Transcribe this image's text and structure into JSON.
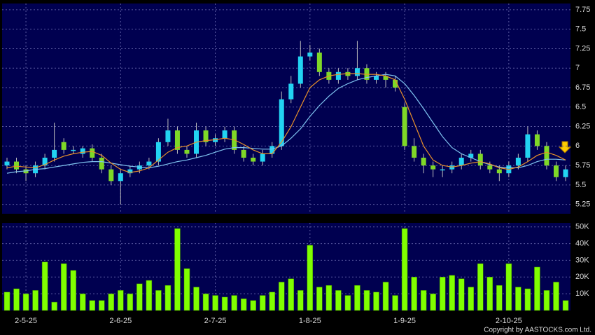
{
  "chart_data": {
    "type": "candlestick",
    "categories": [
      null,
      null,
      "2-5-25",
      null,
      null,
      null,
      null,
      null,
      null,
      null,
      null,
      null,
      "2-6-25",
      null,
      null,
      null,
      null,
      null,
      null,
      null,
      null,
      null,
      "2-7-25",
      null,
      null,
      null,
      null,
      null,
      null,
      null,
      null,
      null,
      "1-8-25",
      null,
      null,
      null,
      null,
      null,
      null,
      null,
      null,
      null,
      "1-9-25",
      null,
      null,
      null,
      null,
      null,
      null,
      null,
      null,
      null,
      null,
      "2-10-25",
      null,
      null,
      null,
      null,
      null,
      null
    ],
    "open": [
      5.75,
      5.8,
      5.7,
      5.65,
      5.75,
      5.85,
      6.05,
      5.95,
      5.9,
      5.97,
      5.85,
      5.7,
      5.55,
      5.65,
      5.7,
      5.75,
      5.8,
      6.05,
      6.2,
      5.95,
      5.9,
      6.2,
      6.05,
      6.1,
      6.2,
      5.95,
      5.85,
      5.8,
      5.9,
      6.0,
      6.6,
      6.8,
      7.15,
      7.2,
      6.95,
      6.85,
      6.95,
      6.9,
      7.0,
      6.85,
      6.9,
      6.85,
      6.5,
      6.0,
      5.85,
      5.75,
      5.7,
      5.7,
      5.75,
      5.85,
      5.9,
      5.75,
      5.7,
      5.65,
      5.75,
      5.85,
      6.15,
      6.0,
      5.75,
      5.6
    ],
    "high": [
      5.85,
      5.85,
      5.75,
      5.8,
      5.9,
      6.3,
      6.1,
      6.0,
      6.0,
      6.02,
      5.9,
      5.75,
      5.7,
      5.75,
      5.8,
      5.85,
      6.1,
      6.35,
      6.25,
      6.0,
      6.3,
      6.25,
      6.15,
      6.25,
      6.25,
      6.0,
      5.9,
      5.95,
      6.05,
      6.7,
      6.9,
      7.35,
      7.3,
      7.25,
      7.0,
      7.0,
      7.0,
      7.35,
      7.05,
      6.95,
      6.95,
      6.9,
      6.55,
      6.1,
      5.9,
      5.8,
      5.75,
      5.8,
      5.9,
      5.95,
      5.95,
      5.8,
      5.75,
      5.8,
      5.9,
      6.25,
      6.2,
      6.05,
      5.8,
      5.75
    ],
    "low": [
      5.7,
      5.65,
      5.55,
      5.6,
      5.7,
      5.8,
      5.9,
      5.9,
      5.85,
      5.8,
      5.65,
      5.5,
      5.25,
      5.6,
      5.65,
      5.7,
      5.75,
      6.0,
      5.9,
      5.85,
      5.85,
      6.0,
      6.0,
      6.05,
      5.9,
      5.8,
      5.75,
      5.75,
      5.85,
      5.95,
      6.55,
      6.75,
      7.1,
      6.9,
      6.8,
      6.8,
      6.85,
      6.85,
      6.8,
      6.8,
      6.75,
      6.7,
      5.95,
      5.8,
      5.65,
      5.6,
      5.6,
      5.65,
      5.7,
      5.8,
      5.7,
      5.65,
      5.55,
      5.6,
      5.7,
      5.8,
      5.95,
      5.7,
      5.55,
      5.55
    ],
    "close": [
      5.8,
      5.7,
      5.65,
      5.75,
      5.85,
      5.95,
      5.95,
      5.95,
      5.97,
      5.85,
      5.7,
      5.55,
      5.65,
      5.7,
      5.75,
      5.8,
      6.05,
      6.2,
      5.95,
      5.9,
      6.2,
      6.05,
      6.1,
      6.2,
      5.95,
      5.85,
      5.8,
      5.9,
      6.0,
      6.6,
      6.8,
      7.15,
      7.2,
      6.95,
      6.85,
      6.95,
      6.9,
      7.0,
      6.85,
      6.9,
      6.85,
      6.75,
      6.0,
      5.85,
      5.75,
      5.7,
      5.7,
      5.75,
      5.85,
      5.9,
      5.75,
      5.7,
      5.65,
      5.75,
      5.85,
      6.15,
      6.0,
      5.75,
      5.6,
      5.7
    ],
    "up_color": "#22d3f2",
    "down_color": "#7fd827",
    "ma_fast": {
      "color": "#e8902a",
      "values": [
        5.72,
        5.74,
        5.73,
        5.72,
        5.76,
        5.82,
        5.87,
        5.9,
        5.92,
        5.93,
        5.88,
        5.78,
        5.7,
        5.66,
        5.68,
        5.72,
        5.82,
        5.92,
        5.98,
        6.0,
        6.05,
        6.07,
        6.08,
        6.1,
        6.08,
        6.02,
        5.95,
        5.9,
        5.9,
        6.05,
        6.25,
        6.5,
        6.75,
        6.85,
        6.9,
        6.92,
        6.93,
        6.93,
        6.92,
        6.92,
        6.9,
        6.85,
        6.6,
        6.3,
        6.0,
        5.82,
        5.75,
        5.73,
        5.75,
        5.78,
        5.8,
        5.77,
        5.72,
        5.7,
        5.73,
        5.8,
        5.88,
        5.92,
        5.88,
        5.82
      ]
    },
    "ma_slow": {
      "color": "#7fc4f0",
      "values": [
        5.65,
        5.67,
        5.68,
        5.7,
        5.71,
        5.73,
        5.75,
        5.77,
        5.79,
        5.8,
        5.8,
        5.78,
        5.76,
        5.74,
        5.73,
        5.72,
        5.74,
        5.77,
        5.8,
        5.82,
        5.85,
        5.88,
        5.92,
        5.96,
        5.98,
        5.98,
        5.97,
        5.96,
        5.96,
        6.0,
        6.1,
        6.22,
        6.38,
        6.52,
        6.64,
        6.74,
        6.8,
        6.85,
        6.88,
        6.9,
        6.92,
        6.9,
        6.8,
        6.65,
        6.48,
        6.3,
        6.12,
        5.98,
        5.9,
        5.85,
        5.8,
        5.76,
        5.73,
        5.72,
        5.72,
        5.75,
        5.8,
        5.83,
        5.83,
        5.82
      ]
    },
    "ylim": [
      5.13,
      7.83
    ],
    "yticks": [
      5.25,
      5.5,
      5.75,
      6,
      6.25,
      6.5,
      6.75,
      7,
      7.25,
      7.5,
      7.75
    ],
    "grid": true,
    "volume": {
      "color": "#80ff00",
      "values": [
        11000,
        13000,
        10000,
        12000,
        29000,
        5000,
        28000,
        24000,
        10000,
        6000,
        6000,
        10000,
        12000,
        10000,
        16000,
        18000,
        12000,
        15000,
        49000,
        25000,
        14000,
        10000,
        9000,
        8000,
        9000,
        7000,
        6000,
        9000,
        11000,
        17000,
        19000,
        12000,
        39000,
        14000,
        15000,
        12000,
        9000,
        15000,
        12000,
        11000,
        17000,
        9000,
        49000,
        20000,
        12000,
        10000,
        20000,
        21000,
        19000,
        14000,
        28000,
        20000,
        15000,
        28000,
        14000,
        13000,
        26000,
        12000,
        17000,
        6000
      ],
      "ylim": [
        0,
        52400
      ],
      "yticks": [
        {
          "value": 10000,
          "label": "10K"
        },
        {
          "value": 20000,
          "label": "20K"
        },
        {
          "value": 30000,
          "label": "30K"
        },
        {
          "value": 40000,
          "label": "40K"
        },
        {
          "value": 50000,
          "label": "50K"
        }
      ]
    },
    "copyright": "Copyright by AASTOCKS.com Ltd."
  }
}
